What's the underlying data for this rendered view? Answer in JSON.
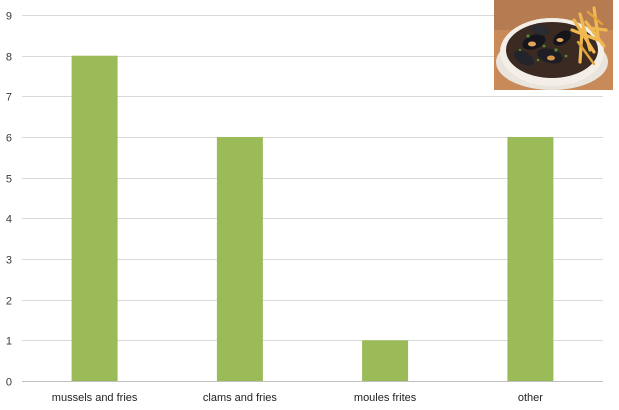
{
  "chart_data": {
    "type": "bar",
    "categories": [
      "mussels and fries",
      "clams and fries",
      "moules frites",
      "other"
    ],
    "series": [
      {
        "values": [
          8,
          6,
          1,
          6
        ]
      }
    ],
    "y_ticks": [
      "0",
      "1",
      "2",
      "3",
      "4",
      "5",
      "6",
      "7",
      "8",
      "9"
    ],
    "ylim": [
      0,
      9
    ],
    "grid": true,
    "bar_color": "#9bbb59"
  },
  "image": {
    "subject": "bowl of mussels with fries",
    "icon": "food-photo"
  }
}
